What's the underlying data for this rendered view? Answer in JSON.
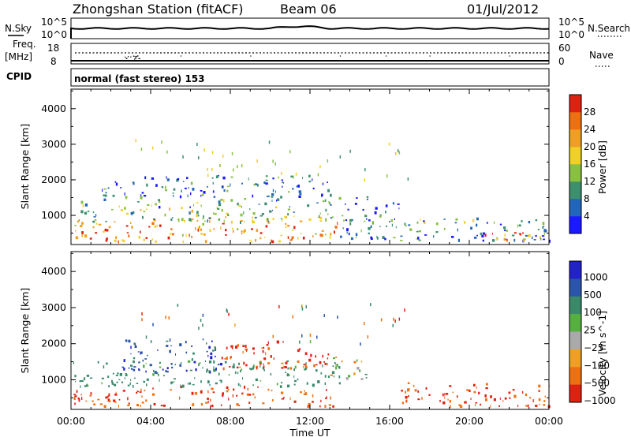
{
  "header": {
    "station": "Zhongshan Station (fitACF)",
    "beam": "Beam 06",
    "date": "01/Jul/2012"
  },
  "strips": {
    "nsky_label": "N.Sky",
    "nsearch_label": "N.Search",
    "noise_ticks": [
      "10^5",
      "10^0"
    ],
    "freq_label": "Freq.",
    "freq_unit": "[MHz]",
    "freq_ticks": [
      "18",
      "8"
    ],
    "nave_label": "Nave",
    "nave_ticks": [
      "60",
      "0"
    ],
    "cpid_label": "CPID",
    "cpid_text": "normal (fast stereo) 153"
  },
  "chart_data": [
    {
      "type": "heatmap",
      "name_hint": "power-panel",
      "title": "",
      "ylabel": "Slant Range [km]",
      "xlabel": "",
      "x_ticks": [
        "00:00",
        "04:00",
        "08:00",
        "12:00",
        "16:00",
        "20:00",
        "00:00"
      ],
      "xlim_hours": [
        0,
        24
      ],
      "ylim": [
        180,
        4550
      ],
      "y_ticks": [
        1000,
        2000,
        3000,
        4000
      ],
      "colorbar": {
        "label": "Power [dB]",
        "ticks": [
          4,
          8,
          12,
          16,
          20,
          24,
          28
        ],
        "range": [
          0,
          30
        ],
        "colors": [
          "#1a1aff",
          "#2266bb",
          "#3d8f6e",
          "#88c040",
          "#f0d020",
          "#f0a020",
          "#f07010",
          "#e02010"
        ]
      },
      "clusters": [
        {
          "x0": 0.1,
          "x1": 13.5,
          "r0": 250,
          "r1": 800,
          "value": 22
        },
        {
          "x0": 0.1,
          "x1": 13.5,
          "r0": 800,
          "r1": 1500,
          "value": 14
        },
        {
          "x0": 1.5,
          "x1": 13.0,
          "r0": 1500,
          "r1": 2100,
          "value": 10
        },
        {
          "x0": 13.5,
          "x1": 16.5,
          "r0": 300,
          "r1": 1500,
          "value": 6
        },
        {
          "x0": 16.5,
          "x1": 24.0,
          "r0": 250,
          "r1": 900,
          "value": 8
        },
        {
          "x0": 20.5,
          "x1": 23.0,
          "r0": 250,
          "r1": 500,
          "value": 24
        }
      ]
    },
    {
      "type": "heatmap",
      "name_hint": "velocity-panel",
      "title": "",
      "ylabel": "Slant Range [km]",
      "xlabel": "Time UT",
      "x_ticks": [
        "00:00",
        "04:00",
        "08:00",
        "12:00",
        "16:00",
        "20:00",
        "00:00"
      ],
      "xlim_hours": [
        0,
        24
      ],
      "ylim": [
        180,
        4550
      ],
      "y_ticks": [
        1000,
        2000,
        3000,
        4000
      ],
      "colorbar": {
        "label": "Velocity [m s^-1]",
        "ticks": [
          "1000",
          "500",
          "100",
          "25",
          "−25",
          "−100",
          "−500",
          "−1000"
        ],
        "colors": [
          "#2222cc",
          "#2a55aa",
          "#3a8a6a",
          "#55b040",
          "#aaaaaa",
          "#f0a020",
          "#f07010",
          "#e02010"
        ]
      },
      "clusters": [
        {
          "x0": 0.1,
          "x1": 13.5,
          "r0": 250,
          "r1": 800,
          "value": -300
        },
        {
          "x0": 0.1,
          "x1": 13.5,
          "r0": 800,
          "r1": 1500,
          "value": 150
        },
        {
          "x0": 2.5,
          "x1": 7.5,
          "r0": 1200,
          "r1": 2100,
          "value": 700
        },
        {
          "x0": 7.5,
          "x1": 13.0,
          "r0": 1300,
          "r1": 2100,
          "value": -400
        },
        {
          "x0": 13.0,
          "x1": 15.0,
          "r0": 1000,
          "r1": 1600,
          "value": 0
        },
        {
          "x0": 16.5,
          "x1": 24.0,
          "r0": 250,
          "r1": 900,
          "value": -300
        }
      ]
    }
  ]
}
